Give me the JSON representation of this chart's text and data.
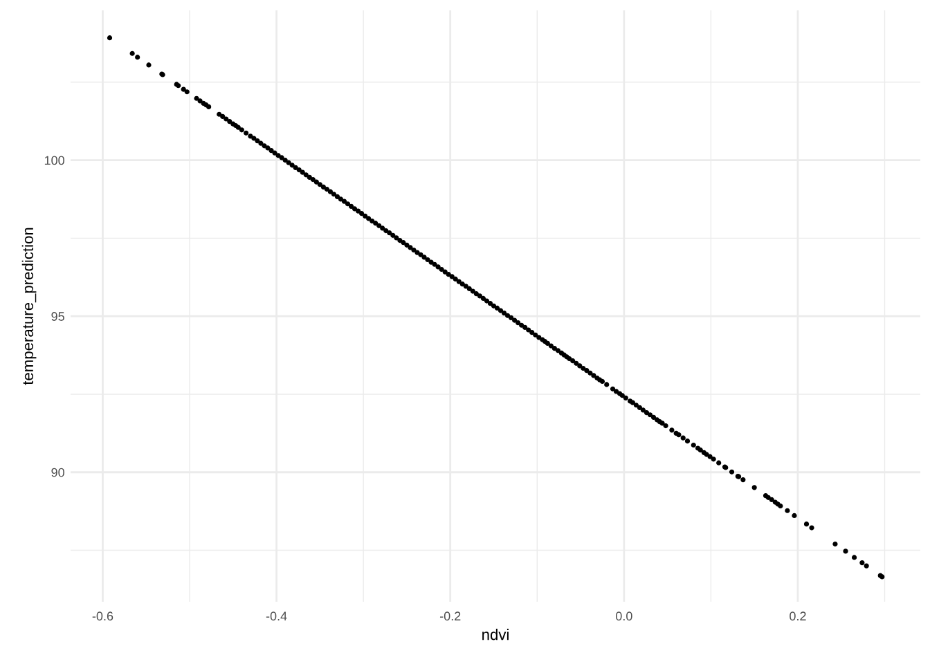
{
  "chart_data": {
    "type": "scatter",
    "xlabel": "ndvi",
    "ylabel": "temperature_prediction",
    "xlim": [
      -0.637,
      0.341
    ],
    "ylim": [
      85.85,
      104.8
    ],
    "xticks": [
      {
        "value": -0.6,
        "label": "-0.6"
      },
      {
        "value": -0.5,
        "label": null
      },
      {
        "value": -0.4,
        "label": "-0.4"
      },
      {
        "value": -0.3,
        "label": null
      },
      {
        "value": -0.2,
        "label": "-0.2"
      },
      {
        "value": -0.1,
        "label": null
      },
      {
        "value": 0.0,
        "label": "0.0"
      },
      {
        "value": 0.1,
        "label": null
      },
      {
        "value": 0.2,
        "label": "0.2"
      },
      {
        "value": 0.3,
        "label": null
      }
    ],
    "yticks": [
      {
        "value": 87.5,
        "label": null
      },
      90,
      {
        "value": 92.5,
        "label": null
      },
      95,
      {
        "value": 97.5,
        "label": null
      },
      100,
      {
        "value": 102.5,
        "label": null
      }
    ],
    "grid": true,
    "marker": "circle",
    "series": [
      {
        "color": "#000000",
        "x": [
          -0.592,
          -0.566,
          -0.56,
          -0.547,
          -0.532,
          -0.531,
          -0.515,
          -0.513,
          -0.507,
          -0.503,
          -0.492,
          -0.488,
          -0.484,
          -0.481,
          -0.478,
          -0.466,
          -0.462,
          -0.458,
          -0.454,
          -0.45,
          -0.447,
          -0.444,
          -0.44,
          -0.435,
          -0.43,
          -0.426,
          -0.422,
          -0.418,
          -0.414,
          -0.41,
          -0.406,
          -0.402,
          -0.398,
          -0.394,
          -0.39,
          -0.386,
          -0.382,
          -0.378,
          -0.374,
          -0.37,
          -0.366,
          -0.362,
          -0.358,
          -0.354,
          -0.35,
          -0.346,
          -0.342,
          -0.338,
          -0.334,
          -0.33,
          -0.326,
          -0.322,
          -0.318,
          -0.314,
          -0.31,
          -0.306,
          -0.302,
          -0.298,
          -0.294,
          -0.29,
          -0.286,
          -0.282,
          -0.278,
          -0.274,
          -0.27,
          -0.266,
          -0.262,
          -0.258,
          -0.254,
          -0.25,
          -0.246,
          -0.242,
          -0.238,
          -0.234,
          -0.23,
          -0.226,
          -0.222,
          -0.218,
          -0.214,
          -0.21,
          -0.206,
          -0.202,
          -0.198,
          -0.194,
          -0.19,
          -0.186,
          -0.182,
          -0.178,
          -0.174,
          -0.17,
          -0.166,
          -0.162,
          -0.158,
          -0.154,
          -0.15,
          -0.146,
          -0.142,
          -0.138,
          -0.134,
          -0.13,
          -0.126,
          -0.122,
          -0.118,
          -0.114,
          -0.11,
          -0.106,
          -0.102,
          -0.098,
          -0.094,
          -0.091,
          -0.088,
          -0.084,
          -0.08,
          -0.076,
          -0.072,
          -0.069,
          -0.066,
          -0.063,
          -0.059,
          -0.055,
          -0.051,
          -0.047,
          -0.043,
          -0.039,
          -0.035,
          -0.031,
          -0.028,
          -0.025,
          -0.02,
          -0.013,
          -0.009,
          -0.005,
          -0.002,
          0.002,
          0.007,
          0.01,
          0.014,
          0.018,
          0.022,
          0.026,
          0.03,
          0.034,
          0.038,
          0.041,
          0.044,
          0.048,
          0.055,
          0.06,
          0.063,
          0.068,
          0.073,
          0.08,
          0.085,
          0.088,
          0.092,
          0.095,
          0.099,
          0.103,
          0.109,
          0.116,
          0.117,
          0.124,
          0.131,
          0.132,
          0.137,
          0.15,
          0.163,
          0.166,
          0.17,
          0.174,
          0.177,
          0.18,
          0.188,
          0.196,
          0.21,
          0.216,
          0.243,
          0.255,
          0.265,
          0.274,
          0.279,
          0.295,
          0.297
        ],
        "values": [
          103.92,
          103.42,
          103.3,
          103.05,
          102.76,
          102.74,
          102.43,
          102.39,
          102.27,
          102.19,
          101.98,
          101.9,
          101.82,
          101.77,
          101.71,
          101.47,
          101.4,
          101.32,
          101.24,
          101.16,
          101.11,
          101.05,
          100.97,
          100.87,
          100.77,
          100.7,
          100.62,
          100.54,
          100.46,
          100.39,
          100.31,
          100.23,
          100.15,
          100.08,
          100.0,
          99.92,
          99.84,
          99.76,
          99.69,
          99.61,
          99.53,
          99.45,
          99.38,
          99.3,
          99.22,
          99.14,
          99.07,
          98.99,
          98.91,
          98.83,
          98.75,
          98.68,
          98.6,
          98.52,
          98.44,
          98.37,
          98.29,
          98.21,
          98.13,
          98.05,
          97.98,
          97.9,
          97.82,
          97.74,
          97.67,
          97.59,
          97.51,
          97.43,
          97.36,
          97.28,
          97.2,
          97.12,
          97.04,
          96.97,
          96.89,
          96.81,
          96.73,
          96.66,
          96.58,
          96.5,
          96.42,
          96.34,
          96.27,
          96.19,
          96.11,
          96.03,
          95.96,
          95.88,
          95.8,
          95.72,
          95.65,
          95.57,
          95.49,
          95.41,
          95.33,
          95.26,
          95.18,
          95.1,
          95.02,
          94.95,
          94.87,
          94.79,
          94.71,
          94.64,
          94.56,
          94.48,
          94.4,
          94.32,
          94.25,
          94.19,
          94.13,
          94.05,
          93.97,
          93.9,
          93.82,
          93.76,
          93.7,
          93.64,
          93.57,
          93.49,
          93.41,
          93.33,
          93.26,
          93.18,
          93.1,
          93.02,
          92.96,
          92.91,
          92.81,
          92.67,
          92.59,
          92.52,
          92.46,
          92.38,
          92.28,
          92.23,
          92.15,
          92.07,
          91.99,
          91.91,
          91.84,
          91.76,
          91.68,
          91.62,
          91.57,
          91.49,
          91.35,
          91.25,
          91.2,
          91.1,
          91.0,
          90.87,
          90.77,
          90.71,
          90.63,
          90.57,
          90.5,
          90.42,
          90.3,
          90.17,
          90.15,
          90.01,
          89.87,
          89.86,
          89.76,
          89.51,
          89.25,
          89.19,
          89.12,
          89.04,
          88.98,
          88.92,
          88.77,
          88.61,
          88.34,
          88.22,
          87.7,
          87.47,
          87.27,
          87.1,
          87.0,
          86.69,
          86.65
        ]
      }
    ]
  }
}
